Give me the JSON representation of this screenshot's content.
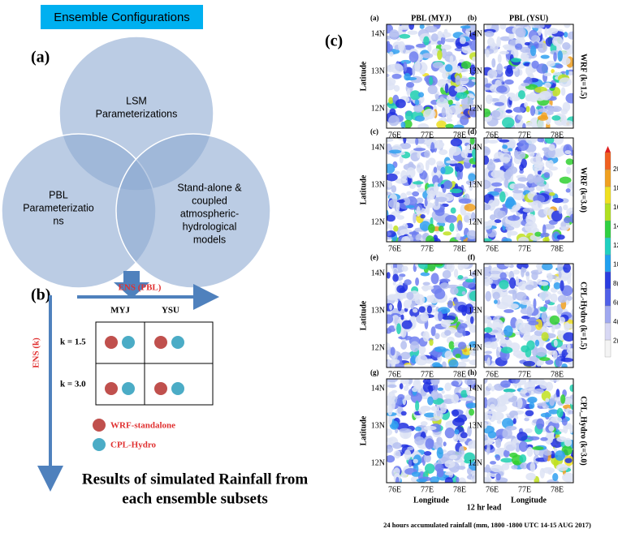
{
  "header": {
    "title": "Ensemble Configurations"
  },
  "panel_labels": [
    "(a)",
    "(b)",
    "(c)"
  ],
  "venn": {
    "lsm": [
      "LSM",
      "Parameterizations"
    ],
    "pbl": [
      "PBL",
      "Parameterizatio",
      "ns"
    ],
    "coupling": [
      "Stand-alone &",
      "coupled",
      "atmospheric-",
      "hydrological",
      "models"
    ]
  },
  "matrix": {
    "ens_pbl": "ENS (PBL)",
    "ens_k": "ENS (k)",
    "columns": [
      "MYJ",
      "YSU"
    ],
    "rows": [
      "k = 1.5",
      "k = 3.0"
    ],
    "legend": [
      "WRF-standalone",
      "CPL-Hydro"
    ]
  },
  "caption": [
    "Results of simulated Rainfall from",
    "each ensemble subsets"
  ],
  "maps": {
    "column_titles": [
      "PBL (MYJ)",
      "PBL (YSU)"
    ],
    "letters": [
      "(a)",
      "(b)",
      "(c)",
      "(d)",
      "(e)",
      "(f)",
      "(g)",
      "(h)"
    ],
    "row_labels": [
      "WRF (k=1.5)",
      "WRF (k=3.0)",
      "CPL-Hydro (k=1.5)",
      "CPL_Hydro (k=3.0)"
    ],
    "lat_ticks": [
      "14N",
      "13N",
      "12N"
    ],
    "lon_ticks": [
      "76E",
      "77E",
      "78E"
    ],
    "y_label": "Latitude",
    "x_label": "Longitude",
    "lead": "12 hr lead",
    "colorbar_labels": [
      "20",
      "18",
      "16",
      "14",
      "12",
      "10",
      "8(",
      "6(",
      "4(",
      "2("
    ],
    "footer": "24 hours accumulated rainfall (mm, 1800 -1800 UTC 14-15 AUG 2017)"
  }
}
